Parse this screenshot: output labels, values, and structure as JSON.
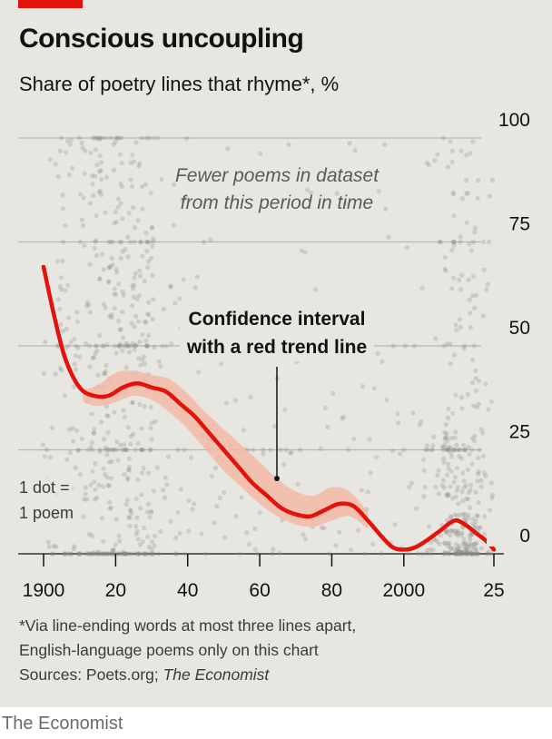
{
  "header": {
    "title": "Conscious uncoupling",
    "subtitle": "Share of poetry lines that rhyme*, %"
  },
  "chart_data": {
    "type": "scatter",
    "title": "Conscious uncoupling",
    "subtitle": "Share of poetry lines that rhyme*, %",
    "xlabel": "",
    "ylabel": "",
    "xlim": [
      1900,
      2025
    ],
    "ylim": [
      0,
      100
    ],
    "x_ticks": [
      {
        "value": 1900,
        "label": "1900"
      },
      {
        "value": 1920,
        "label": "20"
      },
      {
        "value": 1940,
        "label": "40"
      },
      {
        "value": 1960,
        "label": "60"
      },
      {
        "value": 1980,
        "label": "80"
      },
      {
        "value": 2000,
        "label": "2000"
      },
      {
        "value": 2025,
        "label": "25"
      }
    ],
    "y_ticks": [
      {
        "value": 0,
        "label": "0"
      },
      {
        "value": 25,
        "label": "25"
      },
      {
        "value": 50,
        "label": "50"
      },
      {
        "value": 75,
        "label": "75"
      },
      {
        "value": 100,
        "label": "100"
      }
    ],
    "grid": true,
    "series": [
      {
        "kind": "trend_line",
        "color": "#e3120b",
        "x": [
          1900,
          1903,
          1906,
          1910,
          1914,
          1918,
          1922,
          1926,
          1930,
          1934,
          1938,
          1942,
          1946,
          1950,
          1954,
          1958,
          1962,
          1966,
          1970,
          1974,
          1978,
          1982,
          1986,
          1990,
          1994,
          1997,
          2000,
          2003,
          2006,
          2010,
          2014,
          2017,
          2020,
          2023,
          2025
        ],
        "y": [
          69,
          57,
          47,
          40,
          38,
          38,
          40,
          41,
          40,
          39,
          36,
          33,
          29,
          25,
          21,
          17,
          14,
          11,
          9.5,
          9,
          10.5,
          12,
          11.5,
          8,
          4,
          1.5,
          1,
          1.5,
          3,
          5.5,
          8,
          7,
          5,
          3,
          1
        ]
      },
      {
        "kind": "confidence_band",
        "color": "#f3b9a5",
        "x": [
          1911,
          1915,
          1920,
          1925,
          1930,
          1935,
          1940,
          1945,
          1950,
          1955,
          1960,
          1965,
          1970,
          1975,
          1980,
          1985,
          1990
        ],
        "lower": [
          36.5,
          35.5,
          36.5,
          38,
          37,
          34,
          30,
          25,
          20,
          16,
          12,
          9,
          7,
          6.5,
          8,
          9,
          6
        ],
        "upper": [
          39.5,
          40.5,
          43.5,
          44,
          43,
          42,
          38.5,
          34,
          30,
          26,
          22,
          18,
          15,
          14,
          16,
          15,
          10
        ]
      }
    ],
    "scatter_note": "Grey dots, one per poem; dense around 1910-1930 and 2010-2020, sparse around 1935-2005"
  },
  "annotations": {
    "sparse_line1": "Fewer poems in dataset",
    "sparse_line2": "from this period in time",
    "ci_line1": "Confidence interval",
    "ci_line2": "with a red trend line",
    "dot_line1": "1 dot =",
    "dot_line2": "1 poem"
  },
  "footer": {
    "note_line1": "*Via line-ending words at most three lines apart,",
    "note_line2": "English-language poems only on this chart",
    "sources_prefix": "Sources: Poets.org; ",
    "sources_italic": "The Economist",
    "credit": "The Economist"
  },
  "colors": {
    "background": "#e8e6e0",
    "brand_red": "#e3120b",
    "band": "#f3b9a5",
    "dots": "#8a8a86",
    "grid": "#b9b7b1"
  }
}
